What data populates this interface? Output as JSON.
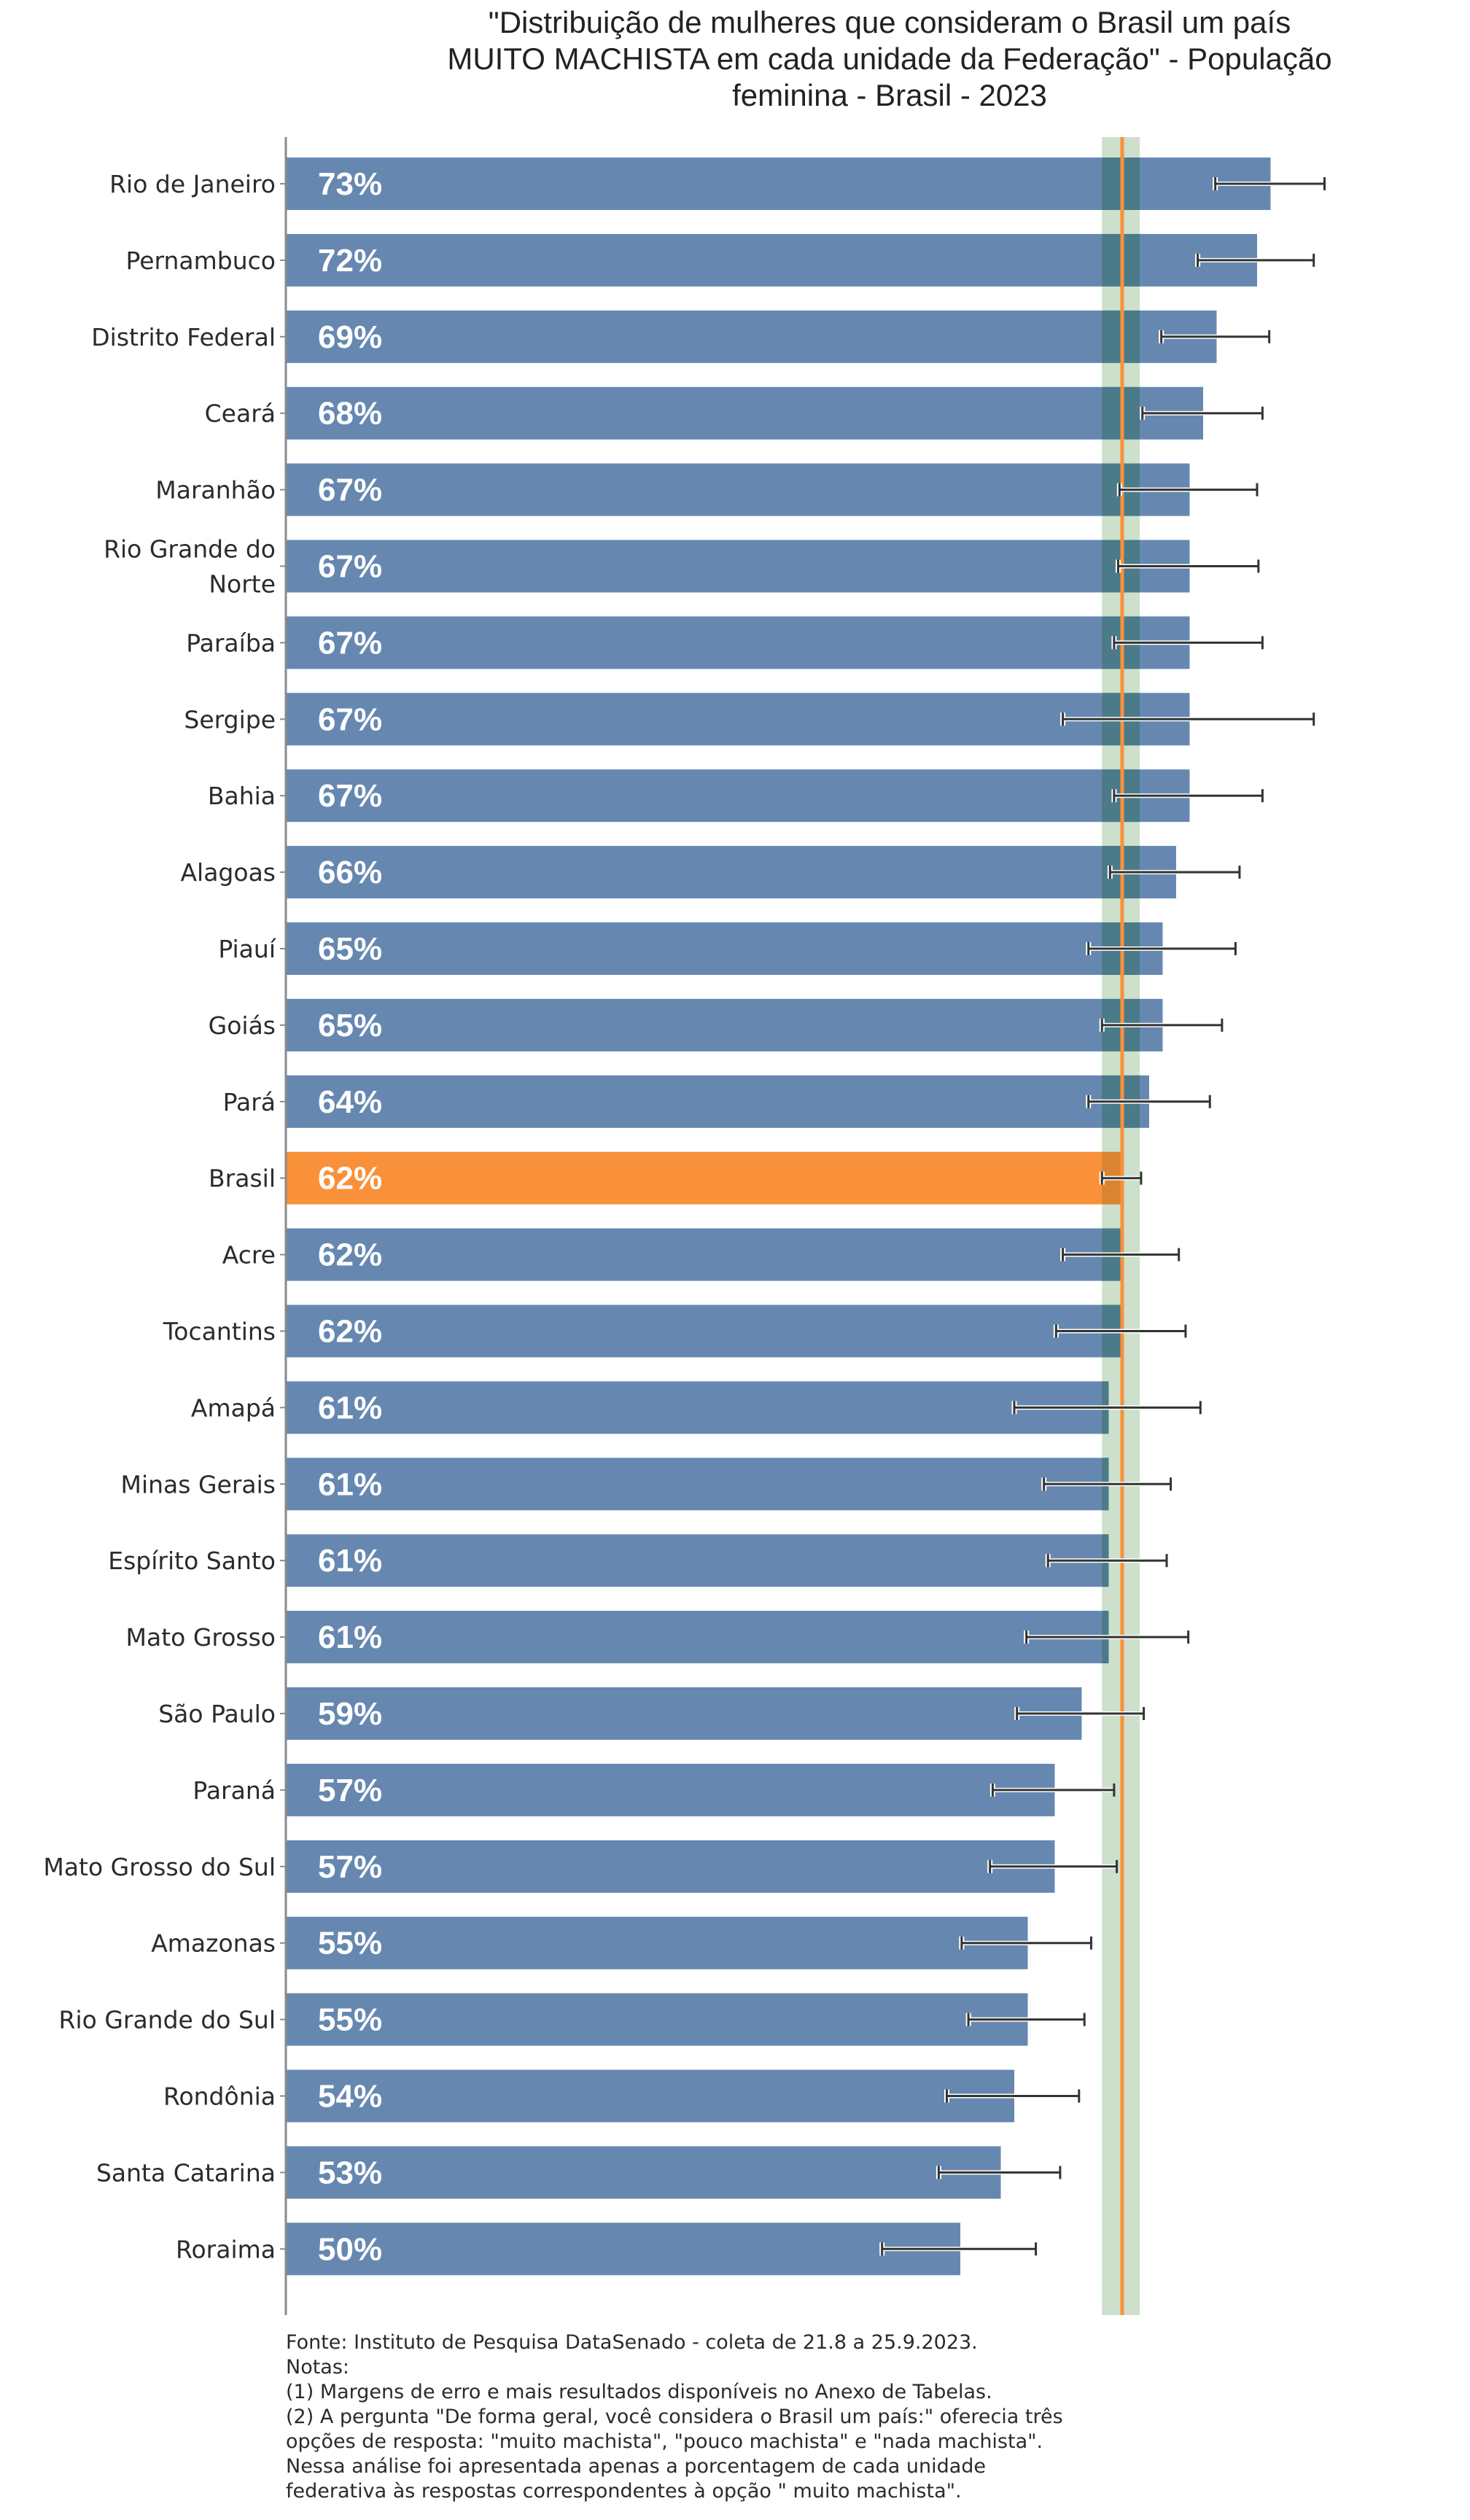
{
  "title_lines": [
    "\"Distribuição de mulheres que consideram o Brasil um país",
    "MUITO MACHISTA em cada unidade da Federação\" - População",
    "feminina - Brasil - 2023"
  ],
  "notes": [
    "Fonte: Instituto de Pesquisa DataSenado - coleta de 21.8 a 25.9.2023.",
    "Notas:",
    "(1) Margens de erro e mais resultados disponíveis no Anexo de Tabelas.",
    "(2) A pergunta \"De forma geral, você considera o Brasil um país:\" oferecia três",
    "opções de resposta: \"muito machista\", \"pouco machista\" e \"nada machista\".",
    "Nessa análise foi apresentada apenas a porcentagem de cada unidade",
    "federativa às respostas correspondentes à opção \" muito machista\"."
  ],
  "colors": {
    "bar": "#6688b0",
    "highlight_bar": "#f9913a",
    "reference_line": "#f9913a",
    "reference_band": "#cde0cc",
    "error_bar": "#333333",
    "axis": "#8a8a8a"
  },
  "chart_data": {
    "type": "bar",
    "orientation": "horizontal",
    "title": "\"Distribuição de mulheres que consideram o Brasil um país MUITO MACHISTA em cada unidade da Federação\" - População feminina - Brasil - 2023",
    "xlabel": "",
    "ylabel": "",
    "xlim": [
      0,
      100
    ],
    "value_suffix": "%",
    "highlight_category": "Brasil",
    "reference": {
      "value": 62,
      "band": [
        60.5,
        63.3
      ],
      "label": "Brasil"
    },
    "categories": [
      [
        "Rio de Janeiro"
      ],
      [
        "Pernambuco"
      ],
      [
        "Distrito Federal"
      ],
      [
        "Ceará"
      ],
      [
        "Maranhão"
      ],
      [
        "Rio Grande do",
        "Norte"
      ],
      [
        "Paraíba"
      ],
      [
        "Sergipe"
      ],
      [
        "Bahia"
      ],
      [
        "Alagoas"
      ],
      [
        "Piauí"
      ],
      [
        "Goiás"
      ],
      [
        "Pará"
      ],
      [
        "Brasil"
      ],
      [
        "Acre"
      ],
      [
        "Tocantins"
      ],
      [
        "Amapá"
      ],
      [
        "Minas Gerais"
      ],
      [
        "Espírito Santo"
      ],
      [
        "Mato Grosso"
      ],
      [
        "São Paulo"
      ],
      [
        "Paraná"
      ],
      [
        "Mato Grosso do Sul"
      ],
      [
        "Amazonas"
      ],
      [
        "Rio Grande do Sul"
      ],
      [
        "Rondônia"
      ],
      [
        "Santa Catarina"
      ],
      [
        "Roraima"
      ]
    ],
    "values": [
      73,
      72,
      69,
      68,
      67,
      67,
      67,
      67,
      67,
      66,
      65,
      65,
      64,
      62,
      62,
      62,
      61,
      61,
      61,
      61,
      59,
      57,
      57,
      55,
      55,
      54,
      53,
      50
    ],
    "error_low": [
      68.9,
      67.6,
      64.9,
      63.5,
      61.8,
      61.7,
      61.4,
      57.6,
      61.4,
      61.1,
      59.5,
      60.5,
      59.5,
      60.5,
      57.6,
      57.1,
      54.0,
      56.2,
      56.5,
      54.9,
      54.2,
      52.4,
      52.2,
      50.1,
      50.6,
      49.0,
      48.4,
      44.2
    ],
    "error_high": [
      77.0,
      76.2,
      72.9,
      72.4,
      72.0,
      72.1,
      72.4,
      76.2,
      72.4,
      70.7,
      70.4,
      69.4,
      68.5,
      63.4,
      66.2,
      66.7,
      67.8,
      65.6,
      65.3,
      66.9,
      63.6,
      61.4,
      61.6,
      59.7,
      59.2,
      58.8,
      57.4,
      55.6
    ],
    "grid": false,
    "legend": "none"
  }
}
